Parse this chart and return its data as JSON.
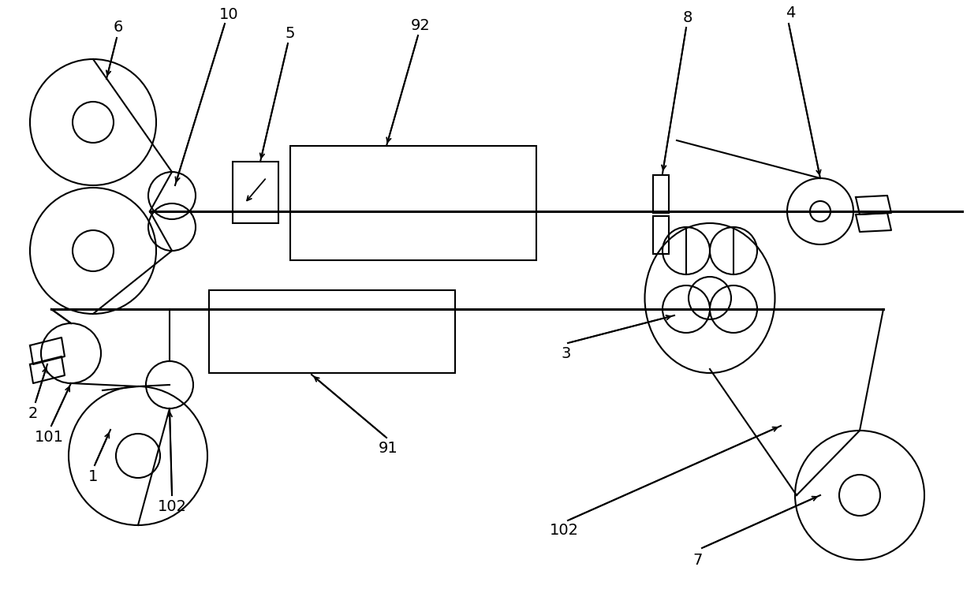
{
  "bg_color": "#ffffff",
  "line_color": "#000000",
  "lw": 1.5,
  "lw2": 2.2,
  "fs": 14,
  "fig_width": 12.4,
  "fig_height": 7.52
}
